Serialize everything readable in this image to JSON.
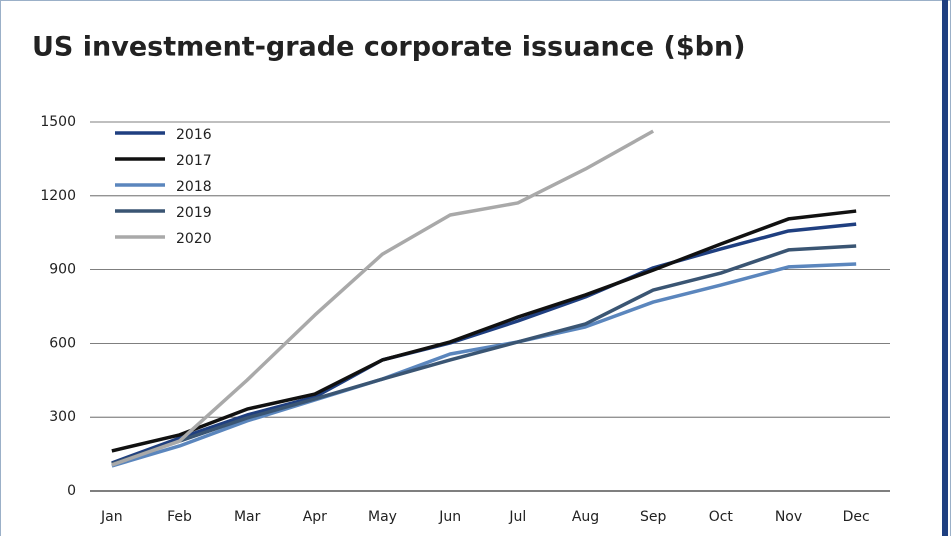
{
  "chart_data": {
    "type": "line",
    "title": "US investment-grade corporate issuance ($bn)",
    "categories": [
      "Jan",
      "Feb",
      "Mar",
      "Apr",
      "May",
      "Jun",
      "Jul",
      "Aug",
      "Sep",
      "Oct",
      "Nov",
      "Dec"
    ],
    "series": [
      {
        "name": "2016",
        "color": "#1f3f80",
        "values": [
          114,
          215,
          309,
          382,
          533,
          602,
          691,
          789,
          907,
          984,
          1057,
          1085
        ]
      },
      {
        "name": "2017",
        "color": "#111111",
        "values": [
          163,
          228,
          333,
          394,
          533,
          606,
          707,
          797,
          898,
          1004,
          1106,
          1138
        ]
      },
      {
        "name": "2018",
        "color": "#5b86bd",
        "values": [
          102,
          183,
          285,
          370,
          455,
          557,
          606,
          667,
          768,
          837,
          911,
          923
        ]
      },
      {
        "name": "2019",
        "color": "#3a5573",
        "values": [
          110,
          203,
          297,
          374,
          455,
          533,
          606,
          679,
          817,
          886,
          980,
          996
        ]
      },
      {
        "name": "2020",
        "color": "#a9a9a9",
        "values": [
          106,
          203,
          451,
          715,
          963,
          1122,
          1171,
          1309,
          1463,
          null,
          null,
          null
        ]
      }
    ],
    "ylim": [
      0,
      1500
    ],
    "yticks": [
      0,
      300,
      600,
      900,
      1200,
      1500
    ],
    "grid": true,
    "legend": "top-left"
  }
}
